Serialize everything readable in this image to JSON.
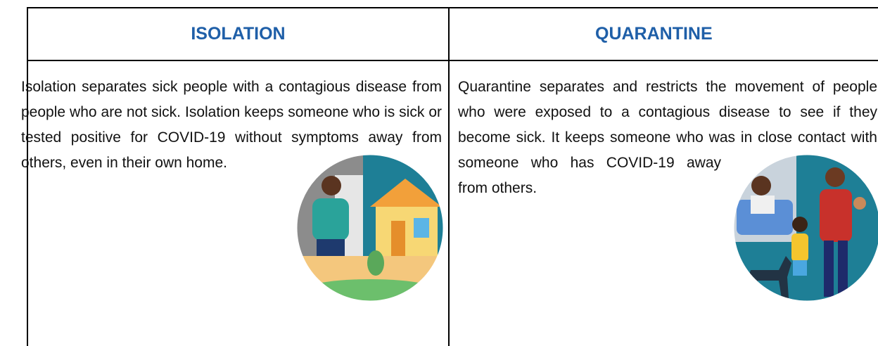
{
  "table": {
    "header": [
      "ISOLATION",
      "QUARANTINE"
    ],
    "body": [
      "Isolation separates sick people with a contagious disease from people who are not sick. Isolation keeps someone who is sick or tested positive for COVID-19 without symptoms away from others, even in their own home.",
      "Quarantine separates and restricts the movement of people who were exposed to a contagious disease to see if they become sick. It keeps someone who was in close contact with someone who has COVID-19 away from others."
    ]
  }
}
